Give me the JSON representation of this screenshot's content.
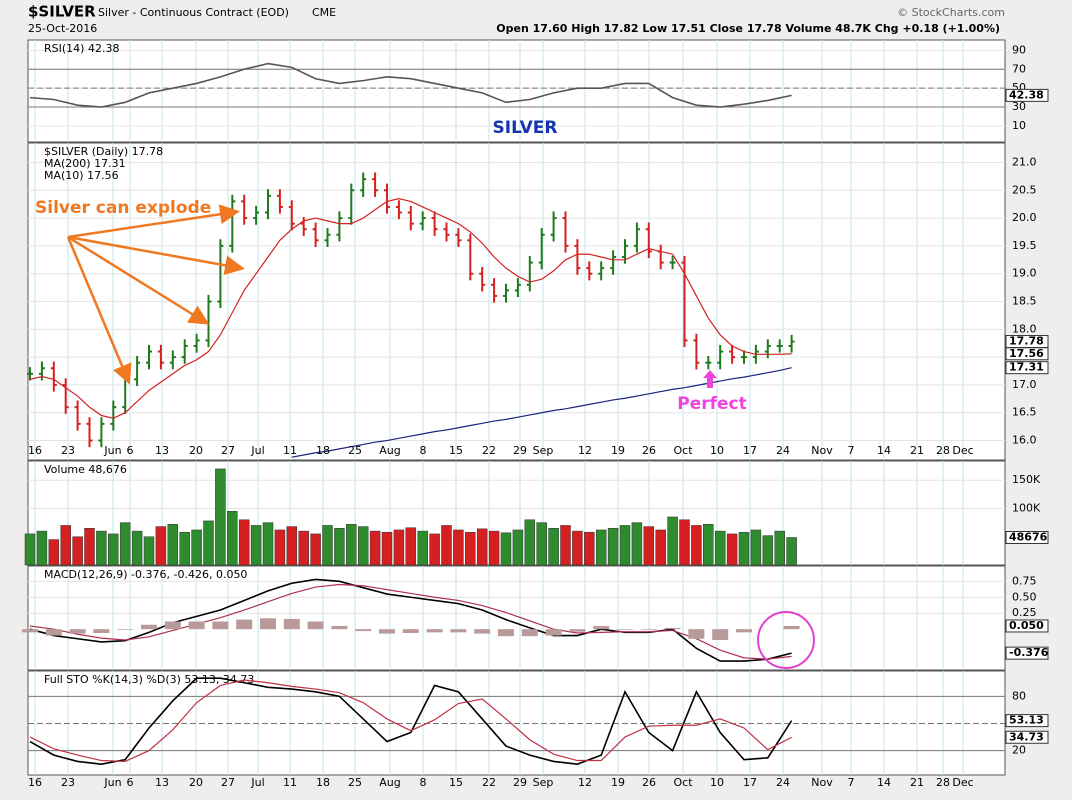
{
  "header": {
    "symbol": "$SILVER",
    "name": "Silver - Continuous Contract (EOD)",
    "exchange": "CME",
    "date": "25-Oct-2016",
    "quote": "Open 17.60  High 17.82  Low 17.51  Close 17.78  Volume 48.7K  Chg +0.18 (+1.00%)",
    "credit": "© StockCharts.com"
  },
  "x_labels": [
    "16",
    "23",
    "Jun",
    "6",
    "13",
    "20",
    "27",
    "Jul",
    "11",
    "18",
    "25",
    "Aug",
    "8",
    "15",
    "22",
    "29",
    "Sep",
    "12",
    "19",
    "26",
    "Oct",
    "10",
    "17",
    "24",
    "Nov",
    "7",
    "14",
    "21",
    "28",
    "Dec"
  ],
  "chart_data": [
    {
      "type": "line",
      "ylim": [
        -7,
        101
      ],
      "yticks": [
        10,
        30,
        50,
        70,
        90
      ],
      "guides": [
        30,
        50,
        70
      ],
      "series": [
        {
          "name": "RSI(14) 42.38",
          "color": "#555555",
          "tag": true,
          "values": [
            40,
            38,
            32,
            30,
            35,
            45,
            50,
            55,
            62,
            70,
            76,
            72,
            60,
            55,
            58,
            62,
            60,
            55,
            50,
            45,
            35,
            38,
            45,
            50,
            50,
            55,
            55,
            40,
            32,
            30,
            33,
            37,
            42.38
          ]
        }
      ]
    },
    {
      "type": "price",
      "title": "SILVER",
      "ylim": [
        15.65,
        21.35
      ],
      "yticks": [
        {
          "value": 16,
          "label": "16.0"
        },
        16.5,
        {
          "value": 17,
          "label": "17.0"
        },
        17.5,
        {
          "value": 18,
          "label": "18.0"
        },
        18.5,
        {
          "value": 19,
          "label": "19.0"
        },
        19.5,
        {
          "value": 20,
          "label": "20.0"
        },
        20.5,
        {
          "value": 21,
          "label": "21.0"
        }
      ],
      "annotations": [
        "Silver can explode",
        "Perfect"
      ],
      "up_color": "#1f7a1f",
      "down_color": "#d42020",
      "series": [
        {
          "name": "$SILVER (Daily) 17.78",
          "color": "#000000",
          "tag": true,
          "values": [
            17.2,
            17.3,
            17.0,
            16.6,
            16.3,
            16.0,
            16.3,
            16.6,
            17.1,
            17.4,
            17.6,
            17.4,
            17.5,
            17.7,
            17.8,
            18.5,
            19.5,
            20.3,
            20.0,
            20.1,
            20.4,
            20.2,
            19.9,
            19.8,
            19.6,
            19.7,
            20.0,
            20.5,
            20.7,
            20.5,
            20.2,
            20.1,
            19.9,
            20.0,
            19.8,
            19.7,
            19.6,
            19.0,
            18.8,
            18.6,
            18.7,
            18.8,
            19.2,
            19.7,
            20.0,
            19.5,
            19.1,
            19.0,
            19.1,
            19.3,
            19.5,
            19.8,
            19.4,
            19.2,
            19.2,
            17.8,
            17.4,
            17.4,
            17.6,
            17.5,
            17.5,
            17.6,
            17.7,
            17.7,
            17.78
          ]
        },
        {
          "name": "MA(200) 17.31",
          "color": "#1a237e",
          "tag": true,
          "values": [
            null,
            null,
            null,
            null,
            null,
            null,
            null,
            null,
            null,
            null,
            null,
            null,
            null,
            null,
            null,
            null,
            null,
            null,
            null,
            null,
            null,
            null,
            15.7,
            15.74,
            15.78,
            15.81,
            15.85,
            15.89,
            15.93,
            15.97,
            16.0,
            16.04,
            16.08,
            16.12,
            16.16,
            16.19,
            16.23,
            16.27,
            16.31,
            16.35,
            16.38,
            16.42,
            16.46,
            16.5,
            16.54,
            16.57,
            16.61,
            16.65,
            16.69,
            16.73,
            16.76,
            16.8,
            16.84,
            16.88,
            16.92,
            16.95,
            16.99,
            17.03,
            17.07,
            17.11,
            17.14,
            17.18,
            17.22,
            17.26,
            17.31
          ]
        },
        {
          "name": "MA(10) 17.56",
          "color": "#d42020",
          "tag": true,
          "values": [
            17.1,
            17.15,
            17.1,
            16.95,
            16.8,
            16.6,
            16.45,
            16.4,
            16.5,
            16.7,
            16.9,
            17.05,
            17.2,
            17.35,
            17.45,
            17.6,
            17.9,
            18.3,
            18.7,
            19.0,
            19.3,
            19.6,
            19.8,
            19.95,
            20.0,
            19.95,
            19.9,
            19.9,
            20.0,
            20.15,
            20.3,
            20.35,
            20.3,
            20.2,
            20.1,
            20.0,
            19.9,
            19.75,
            19.55,
            19.3,
            19.1,
            18.95,
            18.85,
            18.9,
            19.05,
            19.25,
            19.35,
            19.35,
            19.3,
            19.25,
            19.25,
            19.35,
            19.45,
            19.4,
            19.35,
            19.0,
            18.6,
            18.2,
            17.9,
            17.7,
            17.6,
            17.55,
            17.55,
            17.55,
            17.56
          ]
        }
      ]
    },
    {
      "type": "volume",
      "ylim": [
        0,
        184000
      ],
      "yticks": [
        {
          "value": 100000,
          "label": "100K"
        },
        {
          "value": 150000,
          "label": "150K"
        }
      ],
      "series": [
        {
          "name": "Volume 48,676",
          "tag": true,
          "values": [
            55000,
            60000,
            45000,
            70000,
            50000,
            65000,
            60000,
            55000,
            75000,
            60000,
            50000,
            68000,
            72000,
            58000,
            62000,
            78000,
            170000,
            95000,
            80000,
            70000,
            75000,
            62000,
            68000,
            60000,
            55000,
            70000,
            65000,
            72000,
            68000,
            60000,
            58000,
            62000,
            66000,
            60000,
            55000,
            70000,
            62000,
            58000,
            64000,
            60000,
            57000,
            62000,
            80000,
            75000,
            65000,
            70000,
            60000,
            58000,
            62000,
            65000,
            70000,
            75000,
            68000,
            62000,
            85000,
            80000,
            70000,
            72000,
            60000,
            55000,
            58000,
            62000,
            52000,
            60000,
            48676
          ]
        }
      ]
    },
    {
      "type": "line",
      "label": "MACD(12,26,9) -0.376, -0.426, 0.050",
      "ylim": [
        -0.64,
        0.99
      ],
      "yticks": [
        0.25,
        {
          "value": 0.5,
          "label": "0.50"
        },
        0.75
      ],
      "series": [
        {
          "color": "#000000",
          "tag": true,
          "values": [
            0.0,
            -0.1,
            -0.15,
            -0.2,
            -0.18,
            -0.05,
            0.1,
            0.2,
            0.3,
            0.45,
            0.6,
            0.72,
            0.78,
            0.75,
            0.65,
            0.55,
            0.5,
            0.45,
            0.4,
            0.3,
            0.15,
            0.02,
            -0.1,
            -0.1,
            0.0,
            -0.05,
            -0.05,
            0.0,
            -0.3,
            -0.5,
            -0.5,
            -0.47,
            -0.376
          ]
        },
        {
          "color": "#b03050",
          "values": [
            0.05,
            0.0,
            -0.08,
            -0.14,
            -0.17,
            -0.12,
            -0.02,
            0.08,
            0.18,
            0.3,
            0.43,
            0.56,
            0.66,
            0.7,
            0.68,
            0.62,
            0.56,
            0.5,
            0.45,
            0.37,
            0.26,
            0.13,
            0.0,
            -0.06,
            -0.05,
            -0.04,
            -0.04,
            -0.02,
            -0.15,
            -0.33,
            -0.45,
            -0.47,
            -0.426
          ]
        },
        {
          "color": "#b89a9a",
          "kind": "histogram",
          "tag": true,
          "values": [
            -0.05,
            -0.1,
            -0.07,
            -0.06,
            -0.01,
            0.07,
            0.12,
            0.12,
            0.12,
            0.15,
            0.17,
            0.16,
            0.12,
            0.05,
            -0.03,
            -0.07,
            -0.06,
            -0.05,
            -0.05,
            -0.07,
            -0.11,
            -0.11,
            -0.1,
            -0.04,
            0.05,
            -0.01,
            -0.01,
            0.02,
            -0.15,
            -0.17,
            -0.05,
            0.0,
            0.05
          ],
          "value_labels": [
            null,
            null,
            null,
            null,
            null,
            null,
            null,
            null,
            null,
            null,
            null,
            null,
            null,
            null,
            null,
            null,
            null,
            null,
            null,
            null,
            null,
            null,
            null,
            null,
            null,
            null,
            null,
            null,
            null,
            null,
            null,
            null,
            "0.050"
          ]
        }
      ]
    },
    {
      "type": "line",
      "label": "Full STO %K(14,3) %D(3) 53.13, 34.73",
      "ylim": [
        -7,
        108
      ],
      "yticks": [
        20,
        80
      ],
      "guides": [
        20,
        50,
        80
      ],
      "series": [
        {
          "color": "#000000",
          "tag": true,
          "values": [
            30,
            15,
            8,
            5,
            10,
            45,
            75,
            100,
            100,
            95,
            90,
            88,
            85,
            80,
            55,
            30,
            40,
            92,
            85,
            55,
            25,
            15,
            8,
            5,
            15,
            85,
            40,
            20,
            85,
            40,
            10,
            12,
            53.13
          ]
        },
        {
          "color": "#c03040",
          "tag": true,
          "values": [
            35,
            22,
            15,
            9,
            8,
            20,
            43,
            73,
            92,
            98,
            95,
            91,
            88,
            84,
            73,
            55,
            42,
            54,
            72,
            77,
            55,
            32,
            16,
            9,
            9,
            35,
            47,
            48,
            48,
            55,
            45,
            21,
            34.73
          ]
        }
      ]
    }
  ]
}
